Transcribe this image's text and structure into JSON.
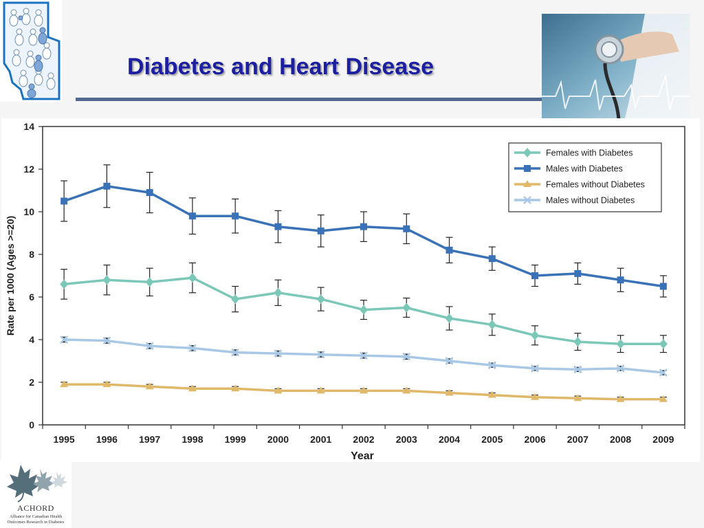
{
  "slide": {
    "title": "Diabetes and Heart Disease"
  },
  "footer_logo": {
    "org": "ACHORD",
    "tagline_1": "Alliance for Canadian Health",
    "tagline_2": "Outcomes Research in Diabetes"
  },
  "colors": {
    "title": "#1c1fa0",
    "rule": "#51698f",
    "females_with_diabetes": "#7cc8b8",
    "males_with_diabetes": "#3a72b8",
    "females_without_diabetes": "#e0b86a",
    "males_without_diabetes": "#a9c8e6"
  },
  "chart_data": {
    "type": "line",
    "title": "",
    "xlabel": "Year",
    "ylabel": "Rate per 1000 (Ages >=20)",
    "ylim": [
      0,
      14
    ],
    "yticks": [
      0,
      2,
      4,
      6,
      8,
      10,
      12,
      14
    ],
    "grid": false,
    "legend_position": "top-right",
    "error_bars": true,
    "x": [
      "1995",
      "1996",
      "1997",
      "1998",
      "1999",
      "2000",
      "2001",
      "2002",
      "2003",
      "2004",
      "2005",
      "2006",
      "2007",
      "2008",
      "2009"
    ],
    "series": [
      {
        "name": "Females with Diabetes",
        "color": "#7cc8b8",
        "marker": "diamond",
        "values": [
          6.6,
          6.8,
          6.7,
          6.9,
          5.9,
          6.2,
          5.9,
          5.4,
          5.5,
          5.0,
          4.7,
          4.2,
          3.9,
          3.8,
          3.8
        ],
        "error": [
          0.7,
          0.7,
          0.65,
          0.7,
          0.6,
          0.6,
          0.55,
          0.45,
          0.45,
          0.55,
          0.5,
          0.45,
          0.4,
          0.4,
          0.4
        ]
      },
      {
        "name": "Males with Diabetes",
        "color": "#3a72b8",
        "marker": "square",
        "values": [
          10.5,
          11.2,
          10.9,
          9.8,
          9.8,
          9.3,
          9.1,
          9.3,
          9.2,
          8.2,
          7.8,
          7.0,
          7.1,
          6.8,
          6.5
        ],
        "error": [
          0.95,
          1.0,
          0.95,
          0.85,
          0.8,
          0.75,
          0.75,
          0.7,
          0.7,
          0.6,
          0.55,
          0.5,
          0.5,
          0.55,
          0.5
        ]
      },
      {
        "name": "Females without Diabetes",
        "color": "#e0b86a",
        "marker": "triangle",
        "values": [
          1.9,
          1.9,
          1.8,
          1.7,
          1.7,
          1.6,
          1.6,
          1.6,
          1.6,
          1.5,
          1.4,
          1.3,
          1.25,
          1.2,
          1.2
        ],
        "error": [
          0.1,
          0.1,
          0.1,
          0.1,
          0.1,
          0.1,
          0.1,
          0.1,
          0.1,
          0.1,
          0.1,
          0.1,
          0.1,
          0.1,
          0.1
        ]
      },
      {
        "name": "Males without Diabetes",
        "color": "#a9c8e6",
        "marker": "x",
        "values": [
          4.0,
          3.95,
          3.7,
          3.6,
          3.4,
          3.35,
          3.3,
          3.25,
          3.2,
          3.0,
          2.8,
          2.65,
          2.6,
          2.65,
          2.45
        ],
        "error": [
          0.12,
          0.12,
          0.12,
          0.12,
          0.12,
          0.12,
          0.12,
          0.12,
          0.12,
          0.1,
          0.1,
          0.1,
          0.1,
          0.1,
          0.1
        ]
      }
    ]
  }
}
